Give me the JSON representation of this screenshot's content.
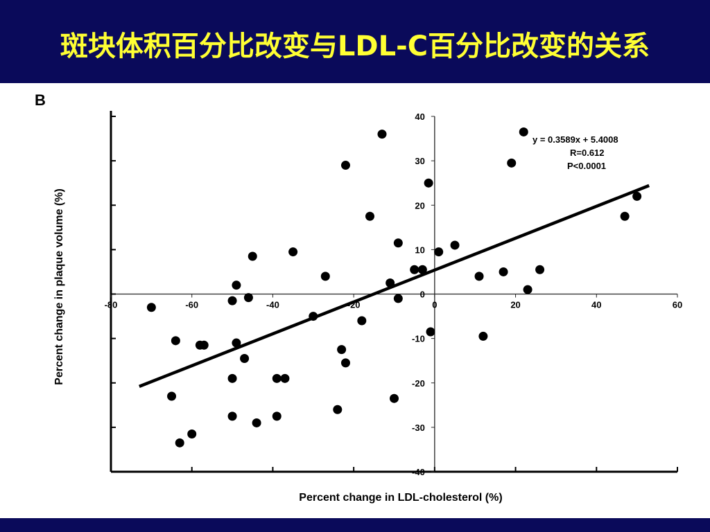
{
  "slide": {
    "title": "斑块体积百分比改变与LDL-C百分比改变的关系",
    "title_color": "#ffff33",
    "bar_color": "#0a0a5a"
  },
  "chart_data": {
    "type": "scatter",
    "panel_label": "B",
    "xlabel": "Percent change in LDL-cholesterol (%)",
    "ylabel": "Percent change in plaque volume (%)",
    "xlim": [
      -80,
      60
    ],
    "ylim": [
      -40,
      40
    ],
    "x_ticks": [
      -80,
      -60,
      -40,
      -20,
      0,
      20,
      40,
      60
    ],
    "y_ticks": [
      -40,
      -30,
      -20,
      -10,
      0,
      10,
      20,
      30,
      40
    ],
    "grid": false,
    "annotation": {
      "equation": "y = 0.3589x + 5.4008",
      "r": "R=0.612",
      "p": "P<0.0001"
    },
    "regression": {
      "slope": 0.3589,
      "intercept": 5.4008,
      "x_range": [
        -73,
        53
      ]
    },
    "points": [
      [
        -70,
        -3
      ],
      [
        -64,
        -10.5
      ],
      [
        -65,
        -23
      ],
      [
        -63,
        -33.5
      ],
      [
        -60,
        -31.5
      ],
      [
        -58,
        -11.5
      ],
      [
        -57,
        -11.5
      ],
      [
        -50,
        -1.5
      ],
      [
        -49,
        2
      ],
      [
        -49,
        -11
      ],
      [
        -50,
        -19
      ],
      [
        -50,
        -27.5
      ],
      [
        -47,
        -14.5
      ],
      [
        -46,
        -0.8
      ],
      [
        -45,
        8.5
      ],
      [
        -44,
        -29
      ],
      [
        -39,
        -19
      ],
      [
        -39,
        -27.5
      ],
      [
        -37,
        -19
      ],
      [
        -35,
        9.5
      ],
      [
        -30,
        -5
      ],
      [
        -27,
        4
      ],
      [
        -24,
        -26
      ],
      [
        -23,
        -12.5
      ],
      [
        -22,
        -15.5
      ],
      [
        -22,
        29
      ],
      [
        -18,
        -6
      ],
      [
        -16,
        17.5
      ],
      [
        -13,
        36
      ],
      [
        -11,
        2.5
      ],
      [
        -10,
        -23.5
      ],
      [
        -9,
        11.5
      ],
      [
        -9,
        -1
      ],
      [
        -5,
        5.5
      ],
      [
        -3,
        5.5
      ],
      [
        -1.5,
        25
      ],
      [
        -1,
        -8.5
      ],
      [
        1,
        9.5
      ],
      [
        5,
        11
      ],
      [
        11,
        4
      ],
      [
        12,
        -9.5
      ],
      [
        17,
        5
      ],
      [
        19,
        29.5
      ],
      [
        22,
        36.5
      ],
      [
        23,
        1
      ],
      [
        26,
        5.5
      ],
      [
        47,
        17.5
      ],
      [
        50,
        22
      ]
    ]
  }
}
